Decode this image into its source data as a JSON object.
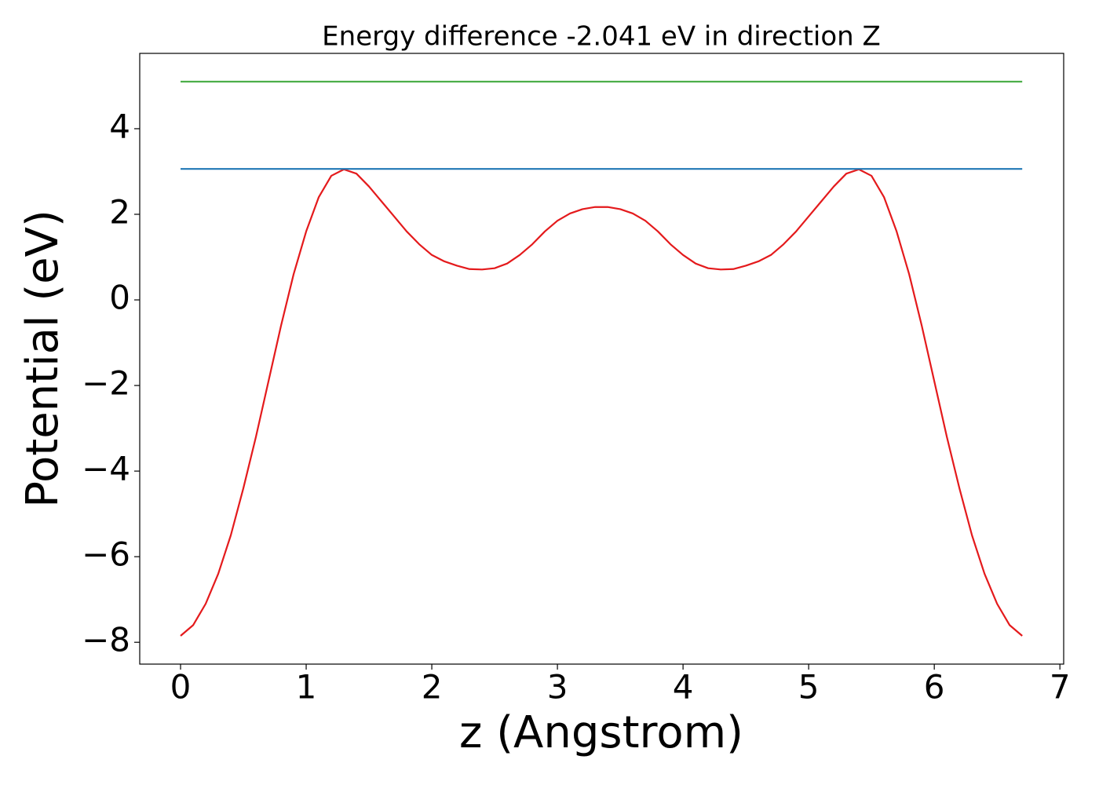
{
  "chart_data": {
    "type": "line",
    "title": "Energy difference -2.041 eV in direction Z",
    "x_label": "z (Angstrom)",
    "y_label": "Potential (eV)",
    "xlim": [
      -0.325,
      7.03
    ],
    "ylim": [
      -8.51,
      5.76
    ],
    "xticks": [
      0,
      1,
      2,
      3,
      4,
      5,
      6,
      7
    ],
    "yticks": [
      {
        "value": -8,
        "label": "−8"
      },
      {
        "value": -6,
        "label": "−6"
      },
      {
        "value": -4,
        "label": "−4"
      },
      {
        "value": -2,
        "label": "−2"
      },
      0,
      2,
      4
    ],
    "grid": false,
    "series": [
      {
        "color": "#e41a1c",
        "x": [
          0,
          0.1,
          0.2,
          0.3,
          0.4,
          0.5,
          0.6,
          0.7,
          0.8,
          0.9,
          1.0,
          1.1,
          1.2,
          1.3,
          1.4,
          1.5,
          1.6,
          1.7,
          1.8,
          1.9,
          2.0,
          2.1,
          2.2,
          2.3,
          2.4,
          2.5,
          2.6,
          2.7,
          2.8,
          2.9,
          3.0,
          3.1,
          3.2,
          3.3,
          3.4,
          3.5,
          3.6,
          3.7,
          3.8,
          3.9,
          4.0,
          4.1,
          4.2,
          4.3,
          4.4,
          4.5,
          4.6,
          4.7,
          4.8,
          4.9,
          5.0,
          5.1,
          5.2,
          5.3,
          5.4,
          5.5,
          5.6,
          5.7,
          5.8,
          5.9,
          6.0,
          6.1,
          6.2,
          6.3,
          6.4,
          6.5,
          6.6,
          6.7
        ],
        "values": [
          -7.85,
          -7.6,
          -7.1,
          -6.4,
          -5.5,
          -4.4,
          -3.2,
          -1.9,
          -0.6,
          0.6,
          1.6,
          2.4,
          2.9,
          3.05,
          2.95,
          2.65,
          2.3,
          1.95,
          1.6,
          1.3,
          1.05,
          0.9,
          0.8,
          0.72,
          0.71,
          0.74,
          0.85,
          1.05,
          1.3,
          1.6,
          1.85,
          2.02,
          2.12,
          2.17,
          2.17,
          2.12,
          2.02,
          1.85,
          1.6,
          1.3,
          1.05,
          0.85,
          0.74,
          0.71,
          0.72,
          0.8,
          0.9,
          1.05,
          1.3,
          1.6,
          1.95,
          2.3,
          2.65,
          2.95,
          3.05,
          2.9,
          2.4,
          1.6,
          0.6,
          -0.6,
          -1.9,
          -3.2,
          -4.4,
          -5.5,
          -6.4,
          -7.1,
          -7.6,
          -7.85
        ]
      },
      {
        "color": "#1f77b4",
        "x": [
          0,
          6.7
        ],
        "values": [
          3.06,
          3.06
        ]
      },
      {
        "color": "#4daf4a",
        "x": [
          0,
          6.7
        ],
        "values": [
          5.1,
          5.1
        ]
      }
    ]
  }
}
